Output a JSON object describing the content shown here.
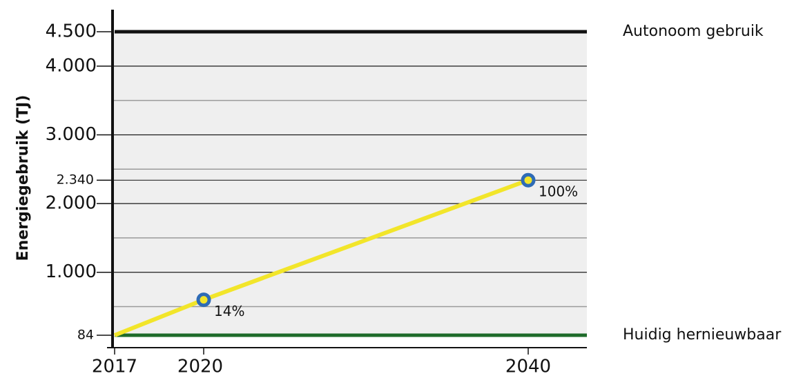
{
  "chart_data": {
    "type": "line",
    "y_label": "Energiegebruik (TJ)",
    "categories": [
      "2017",
      "2020",
      "2040"
    ],
    "series": [
      {
        "name": "Autonoom gebruik",
        "color": "#111111",
        "values": [
          4500,
          4500,
          4500
        ]
      },
      {
        "name": "Huidig hernieuwbaar",
        "color": "#1e6b2a",
        "values": [
          84,
          84,
          84
        ]
      },
      {
        "color": "#e52421",
        "values": [
          4500,
          null,
          2340
        ]
      },
      {
        "color": "#f2e52a",
        "values": [
          84,
          600,
          2340
        ]
      }
    ],
    "annotations": [
      {
        "x": "2020",
        "y": 600,
        "text": "14%"
      },
      {
        "x": "2040",
        "y": 2340,
        "text": "100%"
      }
    ],
    "ylim": [
      84,
      4500
    ],
    "yticks": [
      {
        "value": 4500,
        "label": "4.500"
      },
      {
        "value": 4000,
        "label": "4.000"
      },
      {
        "value": 3000,
        "label": "3.000"
      },
      {
        "value": 2340,
        "label": "2.340"
      },
      {
        "value": 2000,
        "label": "2.000"
      },
      {
        "value": 1000,
        "label": "1.000"
      },
      84
    ],
    "gridlines": [
      500,
      1000,
      1500,
      2000,
      2500,
      3000,
      3500,
      4000
    ],
    "grid": true
  }
}
